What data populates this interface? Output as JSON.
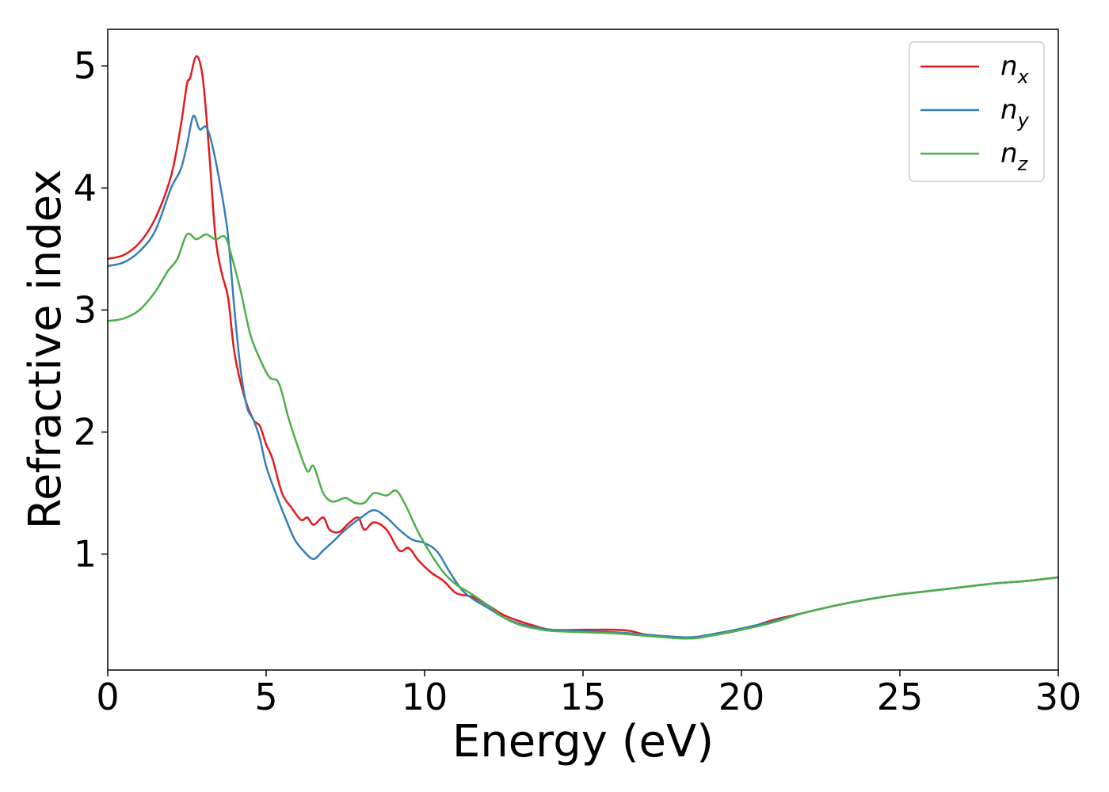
{
  "chart_data": {
    "type": "line",
    "title": "",
    "xlabel": "Energy (eV)",
    "ylabel": "Refractive index",
    "xlim": [
      0,
      30
    ],
    "ylim": [
      0.05,
      5.3
    ],
    "xticks": [
      0,
      5,
      10,
      15,
      20,
      25,
      30
    ],
    "yticks": [
      1,
      2,
      3,
      4,
      5
    ],
    "grid": false,
    "legend_position": "top-right",
    "series": [
      {
        "name": "n",
        "subscript": "x",
        "color": "#e41a1c",
        "points": [
          [
            0,
            3.42
          ],
          [
            0.5,
            3.45
          ],
          [
            1,
            3.55
          ],
          [
            1.5,
            3.75
          ],
          [
            2,
            4.1
          ],
          [
            2.3,
            4.5
          ],
          [
            2.5,
            4.85
          ],
          [
            2.6,
            4.9
          ],
          [
            2.8,
            5.08
          ],
          [
            3,
            4.9
          ],
          [
            3.2,
            4.3
          ],
          [
            3.4,
            3.6
          ],
          [
            3.6,
            3.3
          ],
          [
            3.8,
            3.1
          ],
          [
            4,
            2.65
          ],
          [
            4.3,
            2.3
          ],
          [
            4.6,
            2.1
          ],
          [
            4.8,
            2.05
          ],
          [
            5,
            1.9
          ],
          [
            5.2,
            1.78
          ],
          [
            5.5,
            1.5
          ],
          [
            5.8,
            1.38
          ],
          [
            6.1,
            1.28
          ],
          [
            6.3,
            1.3
          ],
          [
            6.5,
            1.24
          ],
          [
            6.8,
            1.3
          ],
          [
            7,
            1.2
          ],
          [
            7.3,
            1.18
          ],
          [
            7.6,
            1.25
          ],
          [
            7.9,
            1.3
          ],
          [
            8.1,
            1.2
          ],
          [
            8.4,
            1.26
          ],
          [
            8.8,
            1.2
          ],
          [
            9.2,
            1.03
          ],
          [
            9.5,
            1.05
          ],
          [
            9.8,
            0.95
          ],
          [
            10.2,
            0.85
          ],
          [
            10.6,
            0.78
          ],
          [
            11,
            0.68
          ],
          [
            11.5,
            0.65
          ],
          [
            12,
            0.58
          ],
          [
            12.5,
            0.5
          ],
          [
            13,
            0.45
          ],
          [
            13.5,
            0.41
          ],
          [
            14,
            0.38
          ],
          [
            15,
            0.38
          ],
          [
            16,
            0.38
          ],
          [
            16.5,
            0.37
          ],
          [
            17,
            0.34
          ],
          [
            18,
            0.32
          ],
          [
            18.5,
            0.31
          ],
          [
            19,
            0.33
          ],
          [
            20,
            0.38
          ],
          [
            21,
            0.46
          ],
          [
            22,
            0.52
          ],
          [
            23,
            0.58
          ],
          [
            24,
            0.63
          ],
          [
            25,
            0.67
          ],
          [
            26,
            0.7
          ],
          [
            27,
            0.73
          ],
          [
            28,
            0.76
          ],
          [
            29,
            0.78
          ],
          [
            30,
            0.81
          ]
        ]
      },
      {
        "name": "n",
        "subscript": "y",
        "color": "#377eb8",
        "points": [
          [
            0,
            3.36
          ],
          [
            0.5,
            3.39
          ],
          [
            1,
            3.48
          ],
          [
            1.5,
            3.65
          ],
          [
            2,
            4.0
          ],
          [
            2.3,
            4.15
          ],
          [
            2.5,
            4.35
          ],
          [
            2.7,
            4.59
          ],
          [
            2.9,
            4.48
          ],
          [
            3.1,
            4.5
          ],
          [
            3.3,
            4.35
          ],
          [
            3.6,
            3.95
          ],
          [
            3.8,
            3.6
          ],
          [
            4,
            3.0
          ],
          [
            4.2,
            2.5
          ],
          [
            4.4,
            2.2
          ],
          [
            4.6,
            2.1
          ],
          [
            4.8,
            1.95
          ],
          [
            5,
            1.72
          ],
          [
            5.3,
            1.5
          ],
          [
            5.6,
            1.3
          ],
          [
            5.9,
            1.12
          ],
          [
            6.2,
            1.02
          ],
          [
            6.5,
            0.96
          ],
          [
            6.8,
            1.03
          ],
          [
            7.1,
            1.1
          ],
          [
            7.5,
            1.2
          ],
          [
            8,
            1.3
          ],
          [
            8.4,
            1.36
          ],
          [
            8.8,
            1.3
          ],
          [
            9.2,
            1.2
          ],
          [
            9.6,
            1.12
          ],
          [
            10,
            1.09
          ],
          [
            10.4,
            1.02
          ],
          [
            10.8,
            0.85
          ],
          [
            11.2,
            0.7
          ],
          [
            11.6,
            0.62
          ],
          [
            12,
            0.56
          ],
          [
            12.5,
            0.48
          ],
          [
            13,
            0.43
          ],
          [
            13.5,
            0.4
          ],
          [
            14,
            0.38
          ],
          [
            15,
            0.37
          ],
          [
            16,
            0.36
          ],
          [
            17,
            0.34
          ],
          [
            18,
            0.32
          ],
          [
            18.5,
            0.32
          ],
          [
            19,
            0.34
          ],
          [
            20,
            0.39
          ],
          [
            21,
            0.45
          ],
          [
            22,
            0.52
          ],
          [
            23,
            0.58
          ],
          [
            24,
            0.63
          ],
          [
            25,
            0.67
          ],
          [
            26,
            0.7
          ],
          [
            27,
            0.73
          ],
          [
            28,
            0.76
          ],
          [
            29,
            0.78
          ],
          [
            30,
            0.81
          ]
        ]
      },
      {
        "name": "n",
        "subscript": "z",
        "color": "#4daf4a",
        "points": [
          [
            0,
            2.91
          ],
          [
            0.5,
            2.93
          ],
          [
            1,
            3.0
          ],
          [
            1.5,
            3.15
          ],
          [
            1.9,
            3.32
          ],
          [
            2.2,
            3.42
          ],
          [
            2.5,
            3.62
          ],
          [
            2.8,
            3.58
          ],
          [
            3.1,
            3.62
          ],
          [
            3.4,
            3.58
          ],
          [
            3.7,
            3.6
          ],
          [
            3.9,
            3.45
          ],
          [
            4.2,
            3.15
          ],
          [
            4.5,
            2.8
          ],
          [
            4.8,
            2.6
          ],
          [
            5.1,
            2.45
          ],
          [
            5.4,
            2.4
          ],
          [
            5.7,
            2.12
          ],
          [
            6,
            1.88
          ],
          [
            6.3,
            1.68
          ],
          [
            6.5,
            1.72
          ],
          [
            6.8,
            1.5
          ],
          [
            7.1,
            1.43
          ],
          [
            7.5,
            1.46
          ],
          [
            7.8,
            1.42
          ],
          [
            8.1,
            1.42
          ],
          [
            8.4,
            1.5
          ],
          [
            8.8,
            1.48
          ],
          [
            9.1,
            1.52
          ],
          [
            9.4,
            1.4
          ],
          [
            9.8,
            1.18
          ],
          [
            10.2,
            1.0
          ],
          [
            10.6,
            0.85
          ],
          [
            11,
            0.75
          ],
          [
            11.5,
            0.67
          ],
          [
            12,
            0.58
          ],
          [
            12.5,
            0.48
          ],
          [
            13,
            0.42
          ],
          [
            13.5,
            0.39
          ],
          [
            14,
            0.37
          ],
          [
            15,
            0.36
          ],
          [
            16,
            0.35
          ],
          [
            17,
            0.33
          ],
          [
            18,
            0.31
          ],
          [
            18.5,
            0.31
          ],
          [
            19,
            0.33
          ],
          [
            20,
            0.38
          ],
          [
            21,
            0.44
          ],
          [
            22,
            0.52
          ],
          [
            23,
            0.58
          ],
          [
            24,
            0.63
          ],
          [
            25,
            0.67
          ],
          [
            26,
            0.7
          ],
          [
            27,
            0.73
          ],
          [
            28,
            0.76
          ],
          [
            29,
            0.78
          ],
          [
            30,
            0.81
          ]
        ]
      }
    ]
  }
}
